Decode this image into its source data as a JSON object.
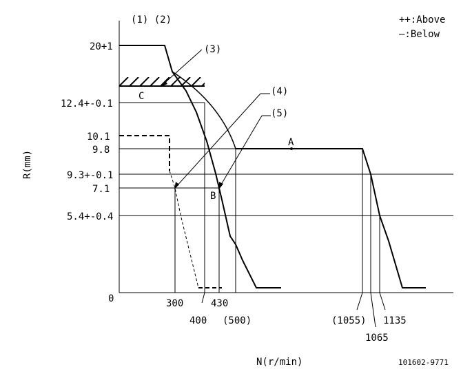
{
  "header": {
    "label_1_2": "(1) (2)",
    "legend_above": "++:Above",
    "legend_below": "—:Below"
  },
  "axes": {
    "y_title": "R(mm)",
    "x_title": "N(r/min)",
    "y_ticks": [
      "20+1",
      "12.4+-0.1",
      "10.1",
      "9.8",
      "9.3+-0.1",
      "7.1",
      "5.4+-0.4",
      "0"
    ],
    "x_ticks": [
      "300",
      "400",
      "430",
      "(500)",
      "(1055)",
      "1065",
      "1135"
    ]
  },
  "callouts": {
    "c3": "(3)",
    "c4": "(4)",
    "c5": "(5)",
    "point_a": "A",
    "point_b": "B",
    "point_c": "C"
  },
  "footer": {
    "drawing_number": "101602-9771"
  }
}
